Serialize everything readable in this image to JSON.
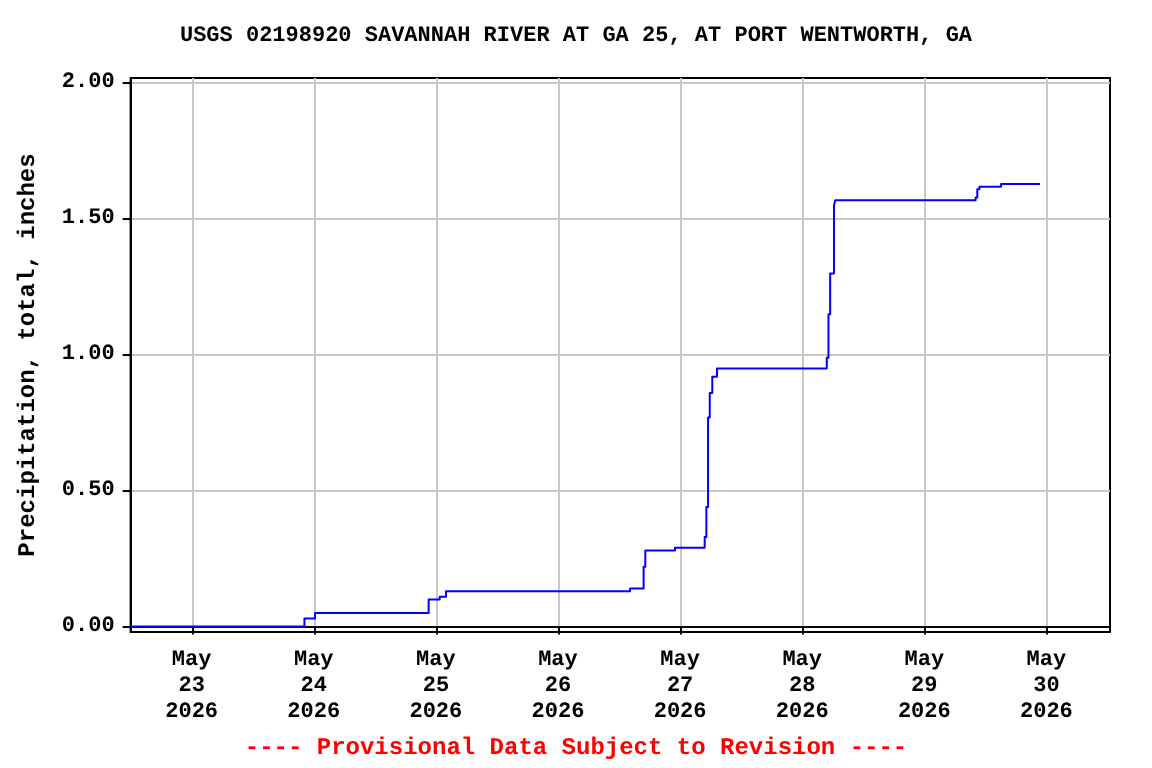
{
  "chart_data": {
    "type": "step",
    "title": "USGS 02198920 SAVANNAH RIVER AT GA 25, AT PORT WENTWORTH, GA",
    "ylabel": "Precipitation, total, inches",
    "annotations": [
      "---- Provisional Data Subject to Revision ----"
    ],
    "x": [
      "2026-05-22T12:00",
      "2026-05-23T22:10",
      "2026-05-24T00:15",
      "2026-05-24T22:35",
      "2026-05-25T00:45",
      "2026-05-25T02:00",
      "2026-05-26T14:10",
      "2026-05-26T16:50",
      "2026-05-26T17:10",
      "2026-05-26T23:00",
      "2026-05-27T04:50",
      "2026-05-27T05:10",
      "2026-05-27T05:30",
      "2026-05-27T05:50",
      "2026-05-27T06:20",
      "2026-05-27T07:15",
      "2026-05-28T04:50",
      "2026-05-28T05:10",
      "2026-05-28T05:30",
      "2026-05-28T06:15",
      "2026-05-28T06:30",
      "2026-05-29T10:05",
      "2026-05-29T10:25",
      "2026-05-29T10:50",
      "2026-05-29T15:05",
      "2026-05-29T22:45"
    ],
    "series": [
      {
        "color": "#0000ff",
        "values": [
          0,
          0.03,
          0.05,
          0.1,
          0.11,
          0.13,
          0.14,
          0.22,
          0.28,
          0.29,
          0.33,
          0.44,
          0.77,
          0.86,
          0.92,
          0.95,
          0.99,
          1.15,
          1.3,
          1.55,
          1.57,
          1.58,
          1.61,
          1.62,
          1.63,
          1.63
        ]
      }
    ],
    "xlim": [
      "2026-05-22T12:00",
      "2026-05-30T12:30"
    ],
    "xticks": [
      {
        "value": "2026-05-23",
        "label": "May\n23\n2026"
      },
      {
        "value": "2026-05-24",
        "label": "May\n24\n2026"
      },
      {
        "value": "2026-05-25",
        "label": "May\n25\n2026"
      },
      {
        "value": "2026-05-26",
        "label": "May\n26\n2026"
      },
      {
        "value": "2026-05-27",
        "label": "May\n27\n2026"
      },
      {
        "value": "2026-05-28",
        "label": "May\n28\n2026"
      },
      {
        "value": "2026-05-29",
        "label": "May\n29\n2026"
      },
      {
        "value": "2026-05-30",
        "label": "May\n30\n2026"
      }
    ],
    "ylim": [
      -0.02,
      2.02
    ],
    "yticks": [
      {
        "value": 0,
        "label": "0.00"
      },
      {
        "value": 0.5,
        "label": "0.50"
      },
      {
        "value": 1,
        "label": "1.00"
      },
      {
        "value": 1.5,
        "label": "1.50"
      },
      {
        "value": 2,
        "label": "2.00"
      }
    ],
    "grid": true,
    "marker": "none",
    "line_style": "solid"
  }
}
